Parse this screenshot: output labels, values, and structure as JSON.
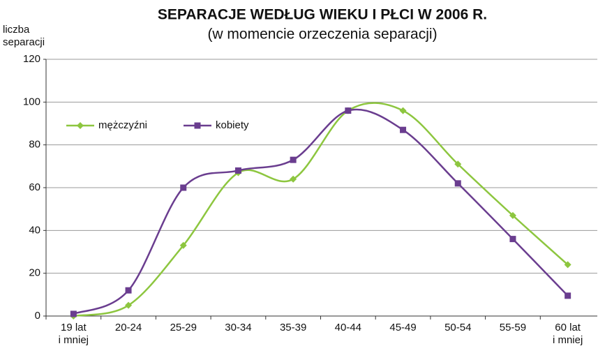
{
  "chart_data": {
    "type": "line",
    "title": "SEPARACJE  WEDŁUG WIEKU I PŁCI W 2006 R.",
    "subtitle": "(w momencie orzeczenia separacji)",
    "y_label": "liczba\nseparacji",
    "categories": [
      "19 lat\ni mniej",
      "20-24",
      "25-29",
      "30-34",
      "35-39",
      "40-44",
      "45-49",
      "50-54",
      "55-59",
      "60 lat\ni mniej"
    ],
    "series": [
      {
        "name": "mężczyźni",
        "color": "#8dc63f",
        "marker": "diamond",
        "values": [
          0,
          5,
          33,
          67,
          64,
          96,
          96,
          71,
          47,
          24
        ]
      },
      {
        "name": "kobiety",
        "color": "#6a3d8f",
        "marker": "square",
        "values": [
          1,
          12,
          60,
          68,
          73,
          96,
          87,
          62,
          36,
          9.5
        ]
      }
    ],
    "ylim": [
      0,
      120
    ],
    "yticks": [
      0,
      20,
      40,
      60,
      80,
      100,
      120
    ],
    "grid": true,
    "legend": "upper-left"
  }
}
